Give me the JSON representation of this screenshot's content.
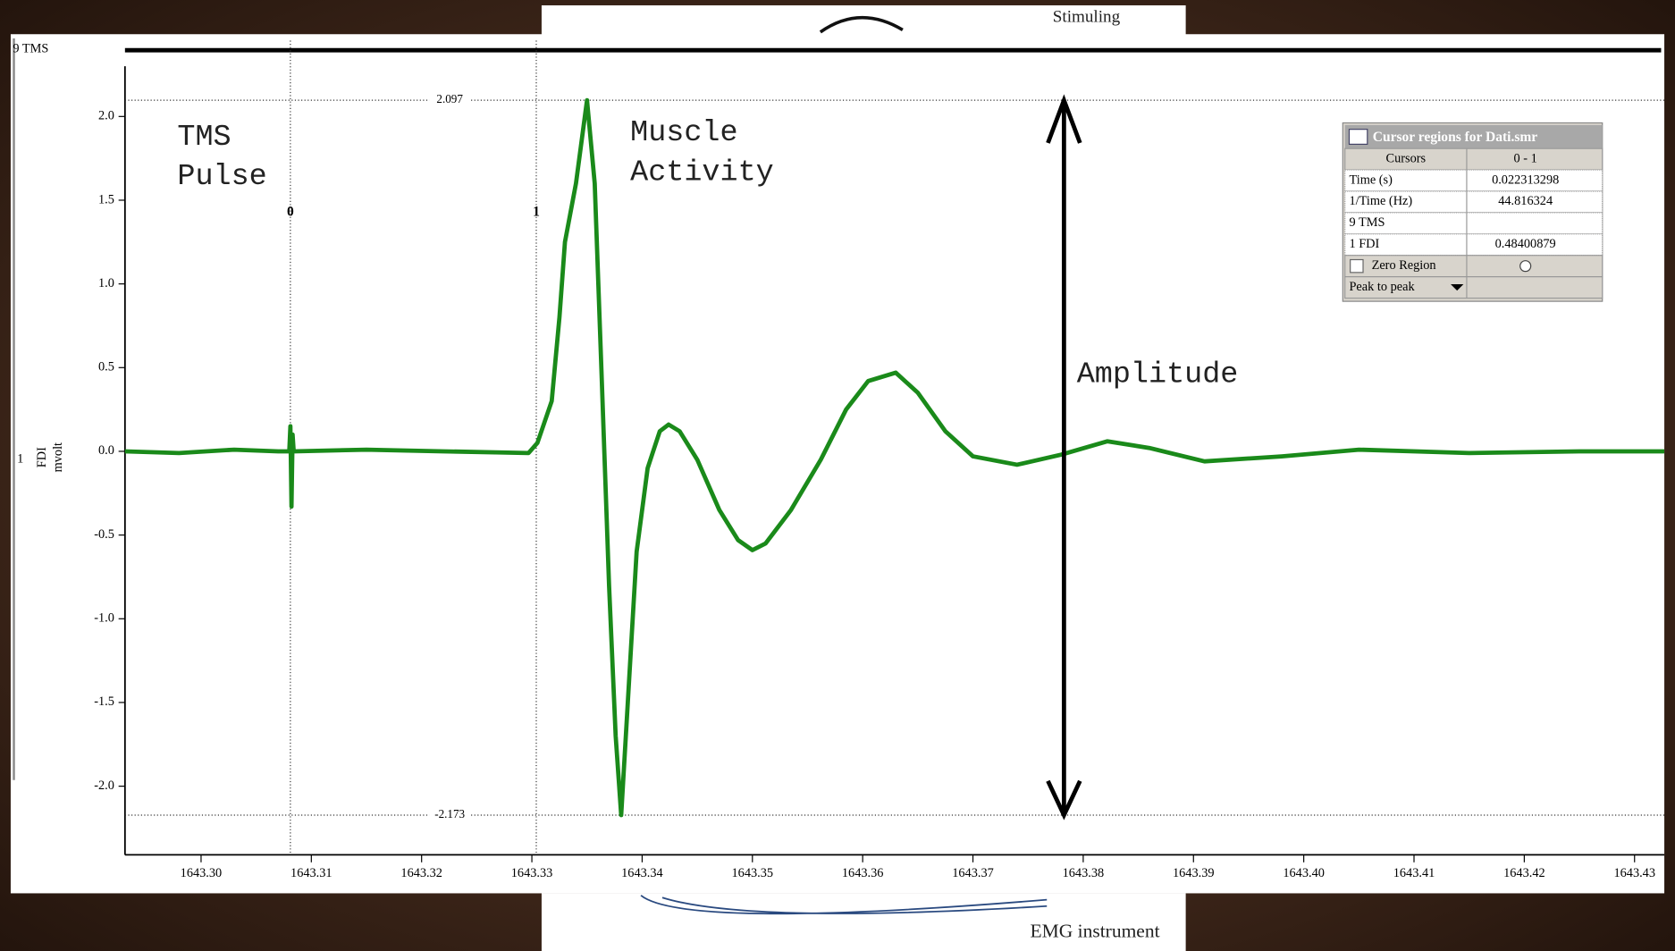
{
  "window": {
    "top_box": "Stimuling",
    "bottom_box": "EMG instrument"
  },
  "chart_data": {
    "type": "line",
    "channel_top": "9 TMS",
    "channel_number": "1",
    "ylabel": "FDI",
    "yunit": "mvolt",
    "x": [
      1643.2931,
      1643.298,
      1643.303,
      1643.307,
      1643.308,
      1643.3081,
      1643.3082,
      1643.3083,
      1643.3084,
      1643.315,
      1643.322,
      1643.3297,
      1643.3305,
      1643.3318,
      1643.3325,
      1643.333,
      1643.334,
      1643.335,
      1643.3357,
      1643.3363,
      1643.337,
      1643.3376,
      1643.3381,
      1643.3387,
      1643.3395,
      1643.3405,
      1643.3416,
      1643.3424,
      1643.3434,
      1643.345,
      1643.347,
      1643.3487,
      1643.35,
      1643.3512,
      1643.3535,
      1643.3562,
      1643.3585,
      1643.3605,
      1643.363,
      1643.365,
      1643.3675,
      1643.37,
      1643.374,
      1643.378,
      1643.3822,
      1643.386,
      1643.391,
      1643.398,
      1643.405,
      1643.415,
      1643.425,
      1643.4327
    ],
    "series": [
      {
        "color": "#1a8a1a",
        "values": [
          0,
          -0.01,
          0.01,
          0,
          0,
          0.15,
          -0.33,
          0.1,
          0,
          0.01,
          0,
          -0.01,
          0.05,
          0.3,
          0.8,
          1.25,
          1.6,
          2.097,
          1.6,
          0.5,
          -0.8,
          -1.7,
          -2.173,
          -1.5,
          -0.6,
          -0.1,
          0.12,
          0.16,
          0.12,
          -0.05,
          -0.35,
          -0.53,
          -0.59,
          -0.55,
          -0.35,
          -0.05,
          0.25,
          0.42,
          0.47,
          0.35,
          0.12,
          -0.03,
          -0.08,
          -0.02,
          0.06,
          0.02,
          -0.06,
          -0.03,
          0.01,
          -0.01,
          0,
          0
        ]
      }
    ],
    "xlim": [
      1643.2931,
      1643.4327
    ],
    "ylim": [
      -2.41,
      2.3
    ],
    "xticks": [
      {
        "value": 1643.3,
        "label": "1643.30"
      },
      1643.31,
      1643.32,
      1643.33,
      1643.34,
      1643.35,
      1643.36,
      1643.37,
      1643.38,
      1643.39,
      {
        "value": 1643.4,
        "label": "1643.40"
      },
      1643.41,
      1643.42,
      1643.43
    ],
    "yticks": [
      {
        "value": 2,
        "label": "2.0"
      },
      1.5,
      {
        "value": 1,
        "label": "1.0"
      },
      0.5,
      {
        "value": 0,
        "label": "0.0"
      },
      -0.5,
      {
        "value": -1,
        "label": "-1.0"
      },
      -1.5,
      {
        "value": -2,
        "label": "-2.0"
      }
    ],
    "cursors": [
      {
        "label": "0",
        "value": 1643.3081
      },
      {
        "label": "1",
        "value": 1643.3304
      }
    ],
    "hcursors": [
      2.097,
      -2.173
    ],
    "annotations": [
      {
        "lines": [
          "TMS",
          "Pulse"
        ]
      },
      {
        "lines": [
          "Muscle",
          "Activity"
        ]
      },
      {
        "lines": [
          "Amplitude"
        ]
      }
    ],
    "cursor_panel": {
      "title": "Cursor regions for Dati.smr",
      "rows": [
        [
          "Cursors",
          "0 - 1"
        ],
        [
          "Time (s)",
          "0.022313298"
        ],
        [
          "1/Time (Hz)",
          "44.816324"
        ],
        [
          "9 TMS"
        ],
        [
          "1 FDI",
          "0.48400879"
        ],
        [
          "Zero Region"
        ],
        [
          "Peak to peak"
        ]
      ]
    }
  }
}
